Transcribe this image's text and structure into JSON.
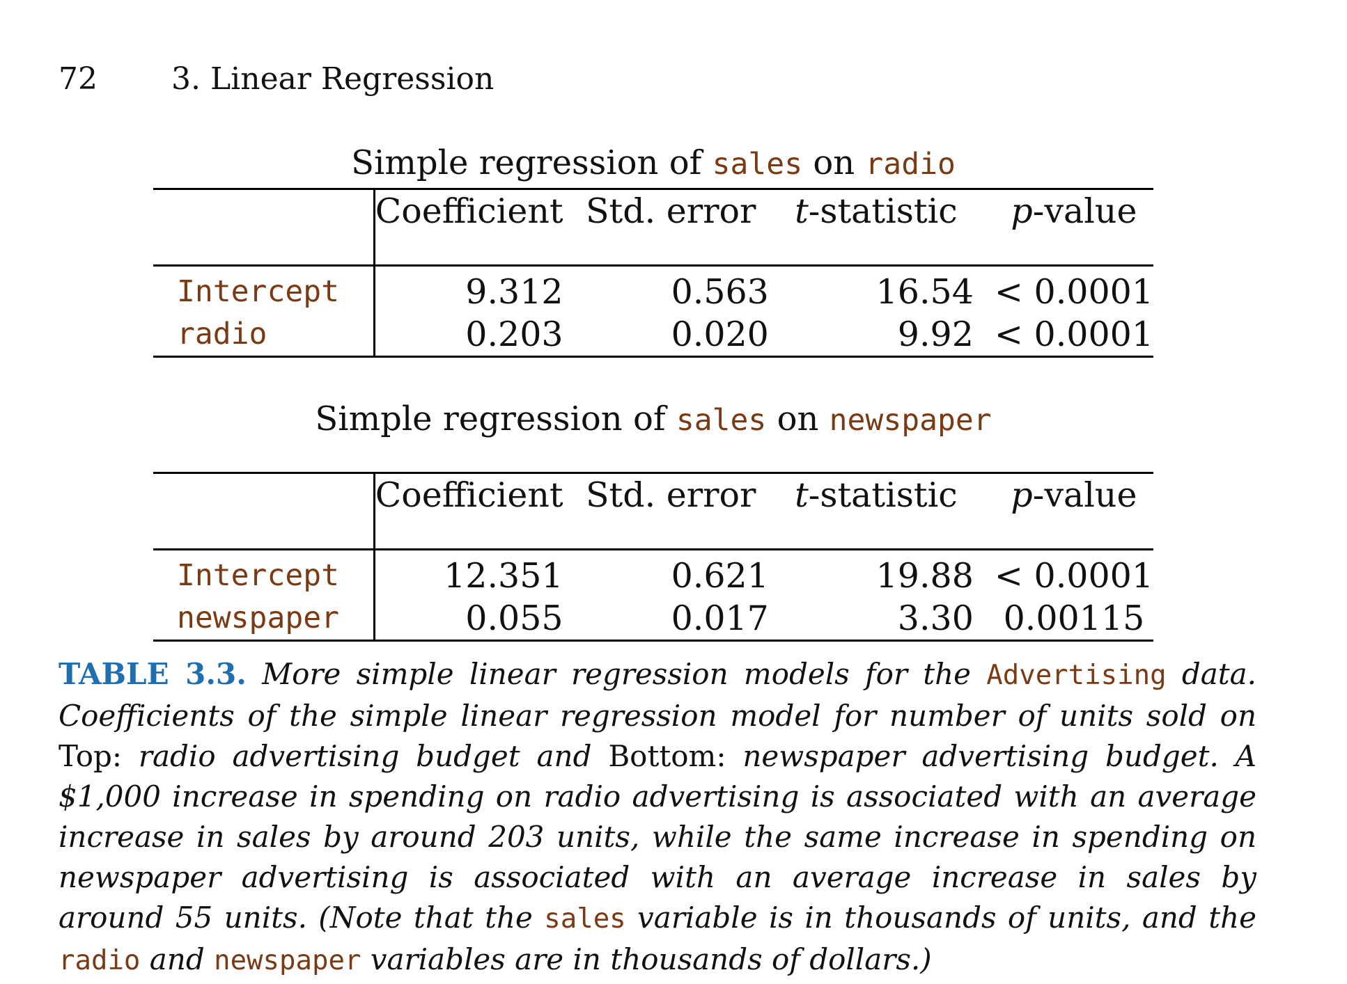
{
  "header": {
    "page_number": "72",
    "chapter": "3. Linear Regression"
  },
  "columns": [
    "Coefficient",
    "Std. error",
    "t",
    "-statistic",
    "p",
    "-value"
  ],
  "tables": [
    {
      "title_pre": "Simple regression of ",
      "title_var1": "sales",
      "title_mid": " on ",
      "title_var2": "radio",
      "rows": [
        {
          "label": "Intercept",
          "coef": "9.312",
          "se": "0.563",
          "t": "16.54",
          "p": "< 0.0001"
        },
        {
          "label": "radio",
          "coef": "0.203",
          "se": "0.020",
          "t": "9.92",
          "p": "< 0.0001"
        }
      ]
    },
    {
      "title_pre": "Simple regression of ",
      "title_var1": "sales",
      "title_mid": " on ",
      "title_var2": "newspaper",
      "rows": [
        {
          "label": "Intercept",
          "coef": "12.351",
          "se": "0.621",
          "t": "19.88",
          "p": "< 0.0001"
        },
        {
          "label": "newspaper",
          "coef": "0.055",
          "se": "0.017",
          "t": "3.30",
          "p": "0.00115"
        }
      ]
    }
  ],
  "caption": {
    "label": "TABLE 3.3.",
    "s1": " More simple linear regression models for the ",
    "code1": "Advertising",
    "s2": " data. Coefficients of the simple linear regression model for number of units sold on ",
    "top": "Top:",
    "s3": " radio advertising budget and ",
    "bottom": "Bottom:",
    "s4": " newspaper advertising budget. A $1,000 increase in spending on radio advertising is associated with an average increase in sales by around 203 units, while the same increase in spending on newspaper advertising is associated with an average increase in sales by around 55 units. (Note that the ",
    "code2": "sales",
    "s5": " variable is in thousands of units, and the ",
    "code3": "radio",
    "s6": " and ",
    "code4": "newspaper",
    "s7": " variables are in thousands of dollars.)"
  }
}
